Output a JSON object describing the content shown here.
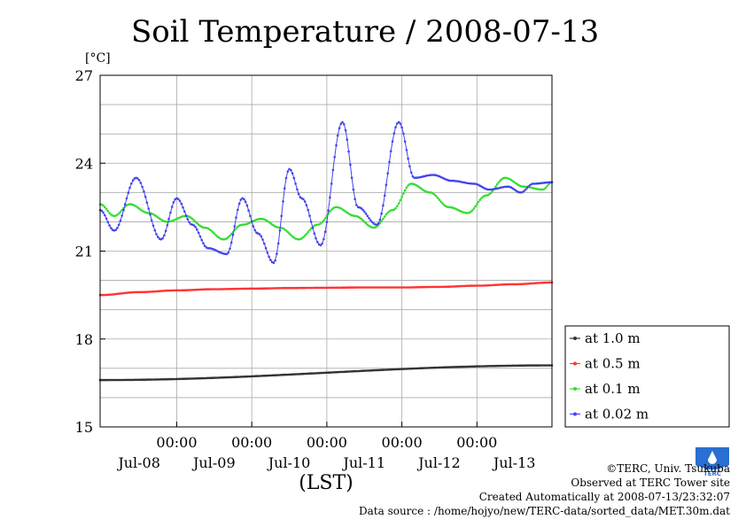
{
  "chart_data": {
    "type": "line",
    "title": "Soil Temperature / 2008-07-13",
    "ylabel": "[°C]",
    "xlabel": "(LST)",
    "ylim": [
      15,
      27
    ],
    "yticks": [
      15,
      18,
      21,
      24,
      27
    ],
    "x_unit": "hours from 2008-07-07 00:00 LST",
    "xlim": [
      23.5,
      168
    ],
    "xticks": [
      {
        "x": 48,
        "time": "00:00",
        "date": "Jul-08"
      },
      {
        "x": 72,
        "time": "00:00",
        "date": "Jul-09"
      },
      {
        "x": 96,
        "time": "00:00",
        "date": "Jul-10"
      },
      {
        "x": 120,
        "time": "00:00",
        "date": "Jul-11"
      },
      {
        "x": 144,
        "time": "00:00",
        "date": "Jul-12"
      }
    ],
    "x_extra_labels": [
      {
        "x": 156,
        "date": "Jul-13"
      }
    ],
    "grid": true,
    "legend_position": "right",
    "series": [
      {
        "name": "at 1.0 m",
        "color": "#333333",
        "x": [
          23.5,
          168
        ],
        "y": [
          16.6,
          17.1
        ]
      },
      {
        "name": "at 0.5 m",
        "color": "#ff3333",
        "x": [
          23.5,
          36,
          48,
          60,
          72,
          84,
          96,
          108,
          120,
          132,
          144,
          156,
          168
        ],
        "y": [
          19.5,
          19.6,
          19.66,
          19.7,
          19.72,
          19.74,
          19.75,
          19.76,
          19.76,
          19.78,
          19.82,
          19.87,
          19.93
        ]
      },
      {
        "name": "at 0.1 m",
        "color": "#33dd33",
        "x": [
          23.5,
          28,
          33,
          39,
          45,
          51,
          57,
          63,
          69,
          75,
          81,
          87,
          93,
          99,
          105,
          111,
          117,
          123,
          129,
          135,
          141,
          147,
          153,
          159,
          165,
          168
        ],
        "y": [
          22.6,
          22.2,
          22.6,
          22.3,
          22.0,
          22.2,
          21.8,
          21.4,
          21.9,
          22.1,
          21.8,
          21.4,
          21.9,
          22.5,
          22.2,
          21.8,
          22.4,
          23.3,
          23.0,
          22.5,
          22.3,
          22.9,
          23.5,
          23.2,
          23.1,
          23.35
        ]
      },
      {
        "name": "at 0.02 m",
        "color": "#4444ee",
        "x": [
          23.5,
          28,
          35,
          43,
          48,
          53,
          58,
          64,
          69,
          74,
          79,
          84,
          88,
          94,
          101,
          106,
          112,
          119,
          124,
          130,
          136,
          143,
          148,
          154,
          158,
          162,
          168
        ],
        "y": [
          22.4,
          21.7,
          23.5,
          21.4,
          22.8,
          21.9,
          21.1,
          20.9,
          22.8,
          21.6,
          20.6,
          23.8,
          22.8,
          21.2,
          25.4,
          22.5,
          21.9,
          25.4,
          23.5,
          23.6,
          23.4,
          23.3,
          23.1,
          23.2,
          23.0,
          23.3,
          23.35
        ]
      }
    ]
  },
  "credits": {
    "copyright": "©TERC, Univ. Tsukuba",
    "observed": "Observed at TERC Tower site",
    "created": "Created Automatically at 2008-07-13/23:32:07",
    "source": "Data source : /home/hojyo/new/TERC-data/sorted_data/MET.30m.dat"
  },
  "logo": {
    "text": "TERC",
    "color": "#2a6fd1"
  }
}
